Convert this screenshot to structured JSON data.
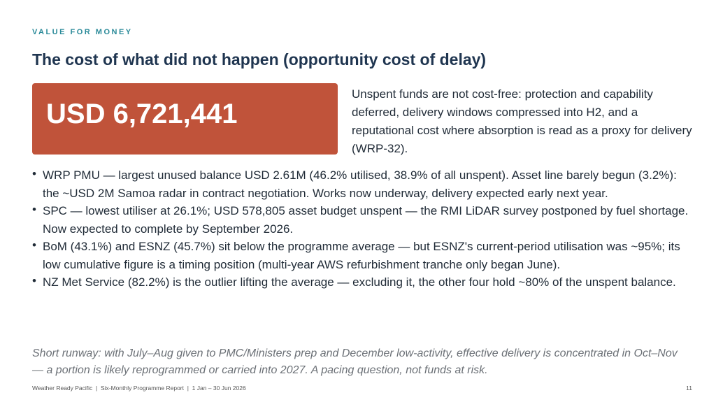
{
  "header": {
    "eyebrow": "VALUE FOR MONEY",
    "title": "The cost of what did not happen (opportunity cost of delay)"
  },
  "callout": {
    "value": "USD 6,721,441",
    "text": "Unspent funds are not cost-free: protection and capability deferred, delivery windows compressed into H2, and a reputational cost where absorption is read as a proxy for delivery (WRP-32)."
  },
  "bullets": [
    "WRP PMU — largest unused balance USD 2.61M (46.2% utilised, 38.9% of all unspent). Asset line barely begun (3.2%): the ~USD 2M Samoa radar in contract negotiation. Works now underway, delivery expected early next year.",
    "SPC — lowest utiliser at 26.1%; USD 578,805 asset budget unspent — the RMI LiDAR survey postponed by fuel shortage. Now expected to complete by September 2026.",
    "BoM (43.1%) and ESNZ (45.7%) sit below the programme average — but ESNZ's current-period utilisation was ~95%; its low cumulative figure is a timing position (multi-year AWS refurbishment tranche only began June).",
    "NZ Met Service (82.2%) is the outlier lifting the average — excluding it, the other four hold ~80% of the unspent balance."
  ],
  "note": "Short runway: with July–Aug given to PMC/Ministers prep and December low-activity, effective delivery is concentrated in Oct–Nov — a portion is likely reprogrammed or carried into 2027. A pacing question, not funds at risk.",
  "footer": {
    "left": "Weather Ready Pacific  |  Six-Monthly Programme Report  |  1 Jan – 30 Jun 2026",
    "page": "11"
  }
}
